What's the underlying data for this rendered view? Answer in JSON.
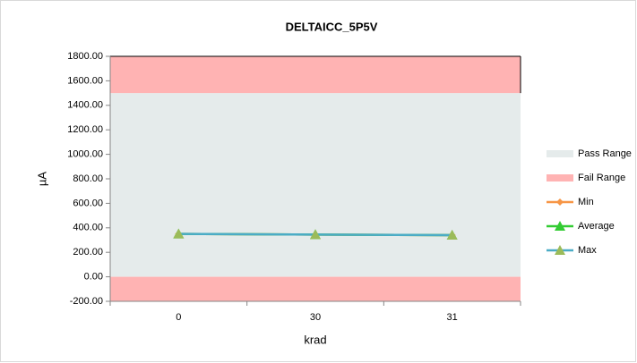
{
  "chart_data": {
    "type": "line",
    "title": "DELTAICC_5P5V",
    "y_label": "µA",
    "x_label": "krad",
    "categories": [
      "0",
      "30",
      "31"
    ],
    "ylim": [
      -200,
      1800
    ],
    "yticks": [
      {
        "value": -200,
        "label": "-200.00"
      },
      {
        "value": 0,
        "label": "0.00"
      },
      {
        "value": 200,
        "label": "200.00"
      },
      {
        "value": 400,
        "label": "400.00"
      },
      {
        "value": 600,
        "label": "600.00"
      },
      {
        "value": 800,
        "label": "800.00"
      },
      {
        "value": 1000,
        "label": "1000.00"
      },
      {
        "value": 1200,
        "label": "1200.00"
      },
      {
        "value": 1400,
        "label": "1400.00"
      },
      {
        "value": 1600,
        "label": "1600.00"
      },
      {
        "value": 1800,
        "label": "1800.00"
      }
    ],
    "bands": [
      {
        "name": "Pass Range",
        "color": "#e5ebeb",
        "values": [
          [
            0,
            1500
          ]
        ]
      },
      {
        "name": "Fail Range",
        "color": "#ffb3b3",
        "values": [
          [
            1500,
            1800
          ],
          [
            -200,
            0
          ]
        ]
      }
    ],
    "series": [
      {
        "name": "Min",
        "color": "#f79646",
        "marker": "diamond",
        "marker_color": "#f79646",
        "values": [
          350,
          345,
          340
        ]
      },
      {
        "name": "Average",
        "color": "#33cc33",
        "marker": "triangle",
        "marker_color": "#33cc33",
        "values": [
          350,
          345,
          340
        ]
      },
      {
        "name": "Max",
        "color": "#4bacc6",
        "marker": "triangle",
        "marker_color": "#9bbb59",
        "values": [
          350,
          345,
          340
        ]
      }
    ],
    "legend": "right"
  }
}
